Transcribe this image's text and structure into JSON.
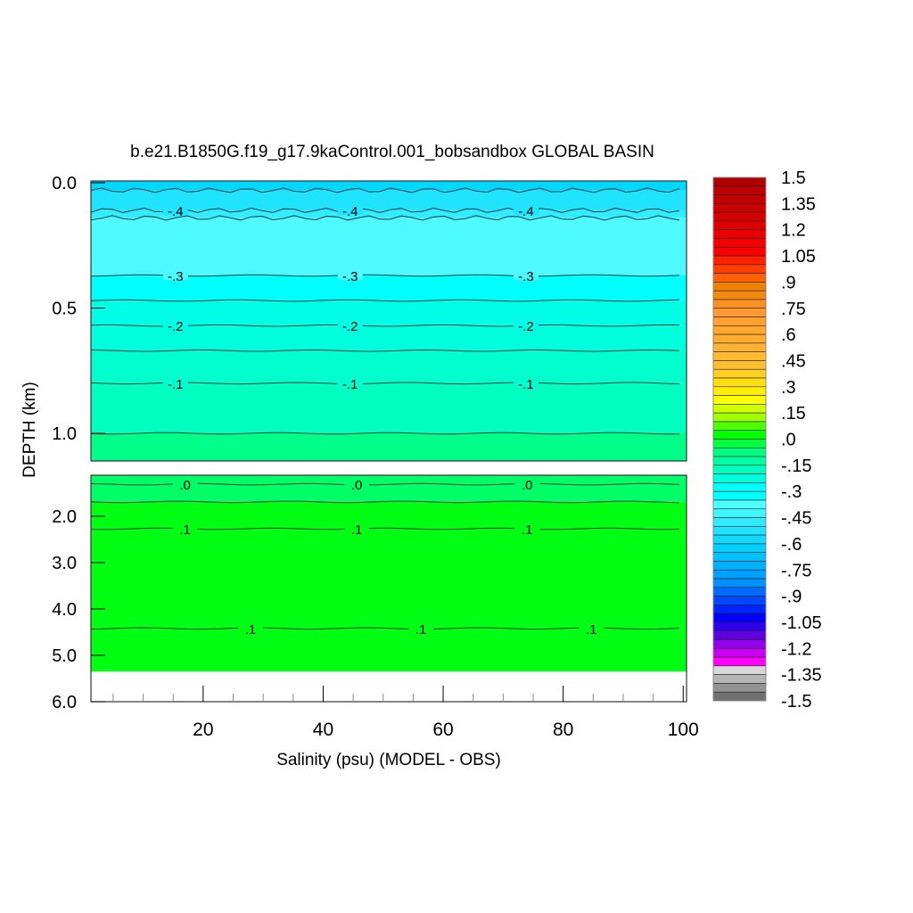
{
  "chart_data": {
    "type": "heatmap",
    "subtype": "filled-contour depth section",
    "title": "b.e21.B1850G.f19_g17.9kaControl.001_bobsandbox GLOBAL BASIN",
    "xlabel": "Salinity (psu) (MODEL - OBS)",
    "ylabel": "DEPTH (km)",
    "xlim": [
      1.3,
      100
    ],
    "x_ticks": [
      20,
      40,
      60,
      80,
      100
    ],
    "x_tick_labels": [
      "20",
      "40",
      "60",
      "80",
      "100"
    ],
    "upper_panel": {
      "ylim": [
        0,
        1.1
      ],
      "y_ticks": [
        0.0,
        0.5,
        1.0
      ],
      "y_tick_labels": [
        "0.0",
        "0.5",
        "1.0"
      ],
      "bands": [
        {
          "from": 0.0,
          "to": 0.03,
          "color": "#00d8ff"
        },
        {
          "from": 0.03,
          "to": 0.11,
          "color": "#20e4ff"
        },
        {
          "from": 0.11,
          "to": 0.14,
          "color": "#30eeff"
        },
        {
          "from": 0.14,
          "to": 0.37,
          "color": "#4cfaff"
        },
        {
          "from": 0.37,
          "to": 0.47,
          "color": "#00ffff"
        },
        {
          "from": 0.47,
          "to": 0.57,
          "color": "#00ffe6"
        },
        {
          "from": 0.57,
          "to": 0.67,
          "color": "#00ffdc"
        },
        {
          "from": 0.67,
          "to": 0.8,
          "color": "#00ffcc"
        },
        {
          "from": 0.8,
          "to": 1.0,
          "color": "#00ffc0"
        },
        {
          "from": 1.0,
          "to": 1.1,
          "color": "#00ff88"
        }
      ],
      "contours": [
        {
          "depth": 0.03,
          "label": ""
        },
        {
          "depth": 0.11,
          "label": "-.4",
          "label_x": [
            15.4,
            44.5,
            73.8
          ]
        },
        {
          "depth": 0.14,
          "label": ""
        },
        {
          "depth": 0.37,
          "label": "-.3",
          "label_x": [
            15.4,
            44.5,
            73.8
          ]
        },
        {
          "depth": 0.47,
          "label": ""
        },
        {
          "depth": 0.57,
          "label": "-.2",
          "label_x": [
            15.4,
            44.5,
            73.8
          ]
        },
        {
          "depth": 0.67,
          "label": ""
        },
        {
          "depth": 0.8,
          "label": "-.1",
          "label_x": [
            15.4,
            44.5,
            73.8
          ]
        },
        {
          "depth": 1.0,
          "label": ""
        }
      ]
    },
    "lower_panel": {
      "ylim": [
        1.1,
        6.0
      ],
      "y_ticks": [
        2.0,
        3.0,
        4.0,
        5.0,
        6.0
      ],
      "y_tick_labels": [
        "2.0",
        "3.0",
        "4.0",
        "5.0",
        "6.0"
      ],
      "bands": [
        {
          "from": 1.12,
          "to": 1.69,
          "color": "#00ff66"
        },
        {
          "from": 1.69,
          "to": 5.35,
          "color": "#00ff12"
        }
      ],
      "contours": [
        {
          "depth": 1.31,
          "label": ".0",
          "label_x": [
            17.0,
            45.6,
            74.0
          ]
        },
        {
          "depth": 1.69,
          "label": ""
        },
        {
          "depth": 2.27,
          "label": ".1",
          "label_x": [
            17.0,
            45.6,
            74.0
          ]
        },
        {
          "depth": 4.42,
          "label": ".1",
          "label_x": [
            27.9,
            56.3,
            84.7
          ]
        }
      ]
    },
    "colorbar": {
      "min": -1.5,
      "max": 1.5,
      "step": 0.05,
      "labels": [
        "1.5",
        "1.35",
        "1.2",
        "1.05",
        ".9",
        ".75",
        ".6",
        ".45",
        ".3",
        ".15",
        ".0",
        "-.15",
        "-.3",
        "-.45",
        "-.6",
        "-.75",
        "-.9",
        "-1.05",
        "-1.2",
        "-1.35",
        "-1.5"
      ],
      "anchors": [
        {
          "i": 0,
          "color": "#b00000"
        },
        {
          "i": 5,
          "color": "#e00000"
        },
        {
          "i": 8,
          "color": "#ff0000"
        },
        {
          "i": 11,
          "color": "#ff6000"
        },
        {
          "i": 12,
          "color": "#f08000"
        },
        {
          "i": 15,
          "color": "#ff9a30"
        },
        {
          "i": 21,
          "color": "#ffc030"
        },
        {
          "i": 24,
          "color": "#ffee00"
        },
        {
          "i": 25,
          "color": "#ffff00"
        },
        {
          "i": 27,
          "color": "#a0ff00"
        },
        {
          "i": 29,
          "color": "#00ff00"
        },
        {
          "i": 31,
          "color": "#00ff80"
        },
        {
          "i": 35,
          "color": "#00ffff"
        },
        {
          "i": 36,
          "color": "#00ffff"
        },
        {
          "i": 37,
          "color": "#50ffff"
        },
        {
          "i": 42,
          "color": "#00d0ff"
        },
        {
          "i": 46,
          "color": "#0090ff"
        },
        {
          "i": 50,
          "color": "#0000ff"
        },
        {
          "i": 52,
          "color": "#6000e0"
        },
        {
          "i": 55,
          "color": "#ff00ff"
        },
        {
          "i": 56,
          "color": "#d8d8d8"
        },
        {
          "i": 59,
          "color": "#707070"
        }
      ]
    }
  }
}
